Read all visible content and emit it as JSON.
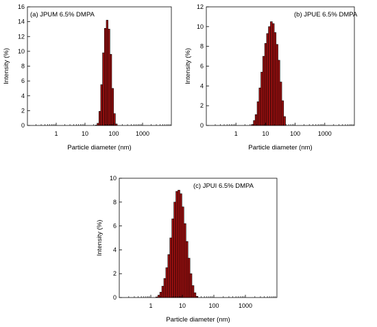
{
  "chart_data": [
    {
      "type": "bar",
      "title": "(a) JPUM 6.5% DMPA",
      "xlabel": "Particle diameter (nm)",
      "ylabel": "Intensity (%)",
      "x_scale": "log",
      "xlim": [
        0.1,
        10000
      ],
      "ylim": [
        0,
        16
      ],
      "xticks": [
        1,
        10,
        100,
        1000
      ],
      "xtick_labels": [
        "1",
        "10",
        "100",
        "1000"
      ],
      "yticks": [
        0,
        2,
        4,
        6,
        8,
        10,
        12,
        14,
        16
      ],
      "grid": false,
      "bar_color": "#9b1010",
      "x": [
        24.4,
        28.2,
        32.7,
        37.8,
        43.8,
        50.7,
        58.8,
        68.1,
        78.8,
        91.3,
        105.7,
        122.4
      ],
      "values": [
        0.05,
        0.3,
        1.9,
        5.5,
        9.8,
        13.1,
        14.2,
        13.0,
        9.6,
        5.0,
        1.6,
        0.2
      ]
    },
    {
      "type": "bar",
      "title": "(b) JPUE 6.5% DMPA",
      "xlabel": "Particle diameter (nm)",
      "ylabel": "Intensity (%)",
      "x_scale": "log",
      "xlim": [
        0.1,
        10000
      ],
      "ylim": [
        0,
        12
      ],
      "xticks": [
        1,
        10,
        100,
        1000
      ],
      "xtick_labels": [
        "1",
        "10",
        "100",
        "1000"
      ],
      "yticks": [
        0,
        2,
        4,
        6,
        8,
        10,
        12
      ],
      "grid": false,
      "bar_color": "#9b1010",
      "x": [
        3.6,
        4.2,
        4.8,
        5.6,
        6.5,
        7.5,
        8.7,
        10.1,
        11.7,
        13.5,
        15.7,
        18.2,
        21.0,
        24.4,
        28.2,
        32.7,
        37.8,
        43.8
      ],
      "values": [
        0.1,
        0.5,
        1.1,
        2.4,
        3.8,
        5.4,
        7.0,
        8.3,
        9.3,
        10.0,
        10.5,
        10.3,
        9.4,
        8.2,
        6.6,
        4.4,
        2.5,
        0.9
      ]
    },
    {
      "type": "bar",
      "title": "(c) JPUI 6.5% DMPA",
      "xlabel": "Particle diameter (nm)",
      "ylabel": "Intensity (%)",
      "x_scale": "log",
      "xlim": [
        0.1,
        10000
      ],
      "ylim": [
        0,
        10
      ],
      "xticks": [
        1,
        10,
        100,
        1000
      ],
      "xtick_labels": [
        "1",
        "10",
        "100",
        "1000"
      ],
      "yticks": [
        0,
        2,
        4,
        6,
        8,
        10
      ],
      "grid": false,
      "bar_color": "#9b1010",
      "x": [
        1.55,
        1.8,
        2.08,
        2.41,
        2.79,
        3.23,
        3.74,
        4.33,
        5.01,
        5.8,
        6.72,
        7.78,
        9.0,
        10.4,
        12.1,
        14.0,
        16.2,
        18.7,
        21.7,
        25.1,
        29.0
      ],
      "values": [
        0.05,
        0.2,
        0.45,
        0.95,
        1.6,
        2.5,
        3.6,
        5.0,
        6.6,
        8.0,
        8.9,
        9.0,
        8.7,
        7.6,
        6.2,
        4.7,
        3.3,
        2.0,
        1.0,
        0.4,
        0.1
      ]
    }
  ]
}
